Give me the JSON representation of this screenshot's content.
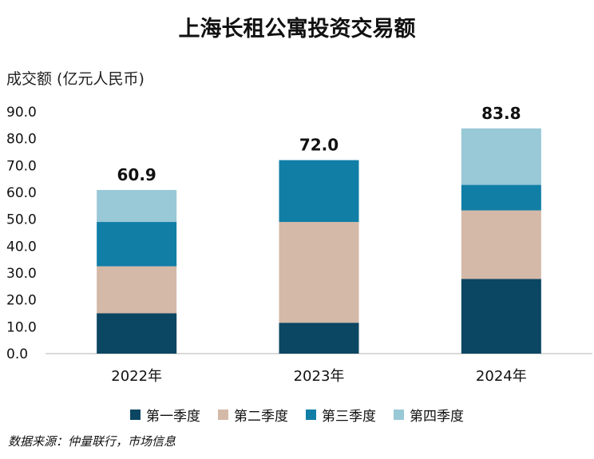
{
  "chart_data": {
    "type": "bar",
    "stacked": true,
    "title": "上海长租公寓投资交易额",
    "ylabel": "成交额 (亿元人民币)",
    "categories": [
      "2022年",
      "2023年",
      "2024年"
    ],
    "yticks": [
      "0.0",
      "10.0",
      "20.0",
      "30.0",
      "40.0",
      "50.0",
      "60.0",
      "70.0",
      "80.0",
      "90.0"
    ],
    "ylim": [
      0,
      90
    ],
    "grid": false,
    "legend_position": "bottom",
    "series": [
      {
        "name": "第一季度",
        "color": "#0b4662",
        "values": [
          15.0,
          11.5,
          27.8
        ]
      },
      {
        "name": "第二季度",
        "color": "#d4b9a8",
        "values": [
          17.5,
          37.5,
          25.5
        ]
      },
      {
        "name": "第三季度",
        "color": "#117ea6",
        "values": [
          16.5,
          23.0,
          9.5
        ]
      },
      {
        "name": "第四季度",
        "color": "#99c8d7",
        "values": [
          11.9,
          0,
          21.0
        ]
      }
    ],
    "totals": [
      "60.9",
      "72.0",
      "83.8"
    ]
  },
  "source": "数据来源：仲量联行，市场信息"
}
